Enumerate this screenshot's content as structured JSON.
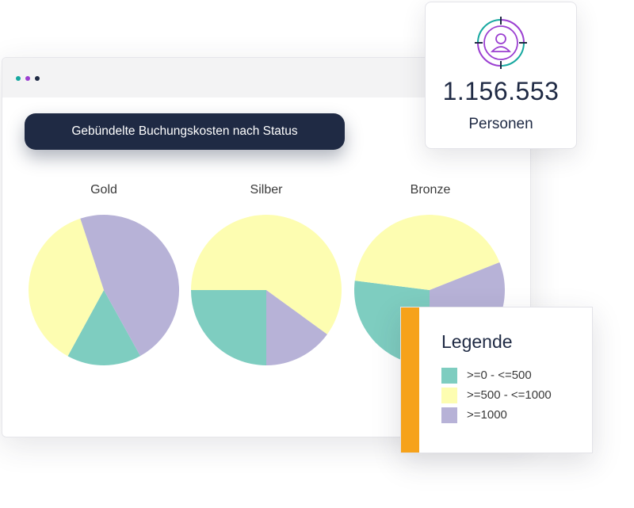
{
  "colors": {
    "teal": "#7ecdc0",
    "yellow": "#fdfdb1",
    "lavender": "#b7b2d7",
    "navy": "#1f2a44",
    "orange": "#f6a21a",
    "purple": "#9b3fd1",
    "teal_accent": "#17a8a0",
    "dot1": "#17a8a0",
    "dot2": "#9b3fd1",
    "dot3": "#1f2a44"
  },
  "window": {
    "dots": [
      "teal",
      "purple",
      "navy"
    ]
  },
  "header": {
    "title": "Gebündelte Buchungskosten nach Status"
  },
  "stat": {
    "value": "1.156.553",
    "label": "Personen",
    "icon": "user-target-icon"
  },
  "legend": {
    "title": "Legende",
    "items": [
      {
        "label": ">=0 - <=500",
        "color": "#7ecdc0"
      },
      {
        "label": ">=500 - <=1000",
        "color": "#fdfdb1"
      },
      {
        "label": ">=1000",
        "color": "#b7b2d7"
      }
    ]
  },
  "chart_data": [
    {
      "type": "pie",
      "title": "Gold",
      "labels": [
        ">=0 - <=500",
        ">=500 - <=1000",
        ">=1000"
      ],
      "values": [
        16,
        37,
        47
      ],
      "colors": [
        "#7ecdc0",
        "#fdfdb1",
        "#b7b2d7"
      ]
    },
    {
      "type": "pie",
      "title": "Silber",
      "labels": [
        ">=0 - <=500",
        ">=500 - <=1000",
        ">=1000"
      ],
      "values": [
        25,
        60,
        15
      ],
      "colors": [
        "#7ecdc0",
        "#fdfdb1",
        "#b7b2d7"
      ]
    },
    {
      "type": "pie",
      "title": "Bronze",
      "labels": [
        ">=0 - <=500",
        ">=500 - <=1000",
        ">=1000"
      ],
      "values": [
        27,
        42,
        31
      ],
      "colors": [
        "#7ecdc0",
        "#fdfdb1",
        "#b7b2d7"
      ]
    }
  ]
}
